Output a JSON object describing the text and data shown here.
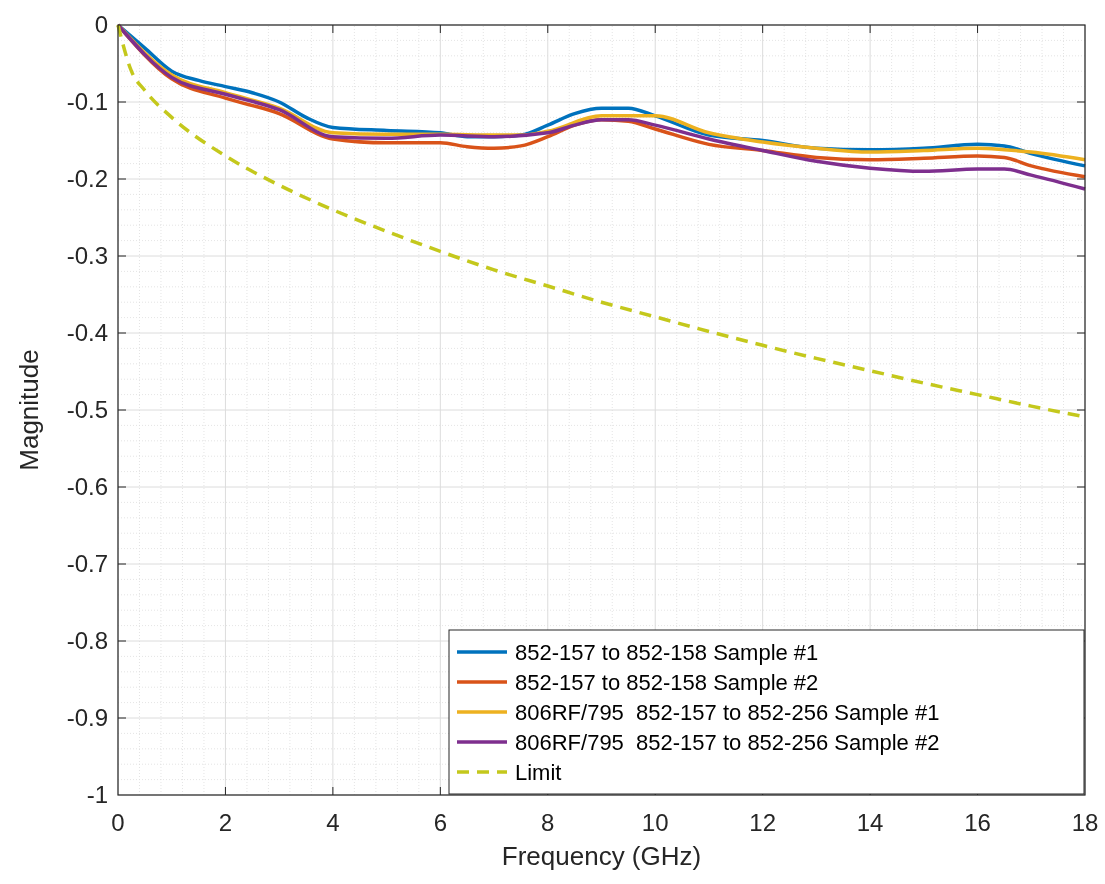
{
  "chart_data": {
    "type": "line",
    "xlabel": "Frequency (GHz)",
    "ylabel": "Magnitude",
    "xlim": [
      0,
      18
    ],
    "xticks": [
      0,
      2,
      4,
      6,
      8,
      10,
      12,
      14,
      16,
      18
    ],
    "ylim": [
      -1,
      0
    ],
    "yticks": [
      -1,
      -0.9,
      -0.8,
      -0.7,
      -0.6,
      -0.5,
      -0.4,
      -0.3,
      -0.2,
      -0.1,
      0
    ],
    "grid": true,
    "legend": "bottom right",
    "line_style": "solid",
    "marker": "none",
    "series": [
      {
        "name": "852-157 to 852-158 Sample #1",
        "color": "#0072bd",
        "x": [
          0,
          0.5,
          1,
          1.5,
          2,
          2.5,
          3,
          3.5,
          4,
          5,
          6,
          6.5,
          7,
          7.5,
          8,
          8.5,
          9,
          9.5,
          10,
          11,
          12,
          13,
          14,
          15,
          16,
          16.5,
          17,
          18
        ],
        "values": [
          0,
          -0.03,
          -0.06,
          -0.072,
          -0.08,
          -0.088,
          -0.1,
          -0.12,
          -0.133,
          -0.137,
          -0.14,
          -0.145,
          -0.145,
          -0.143,
          -0.13,
          -0.115,
          -0.108,
          -0.108,
          -0.118,
          -0.143,
          -0.15,
          -0.16,
          -0.162,
          -0.16,
          -0.155,
          -0.157,
          -0.167,
          -0.183
        ]
      },
      {
        "name": "852-157 to 852-158 Sample #2",
        "color": "#d95319",
        "x": [
          0,
          1,
          2,
          3,
          4,
          5,
          6,
          6.5,
          7,
          7.5,
          8,
          8.5,
          9,
          9.5,
          10,
          11,
          12,
          13,
          14,
          15,
          16,
          16.5,
          17,
          18
        ],
        "values": [
          0,
          -0.07,
          -0.095,
          -0.115,
          -0.148,
          -0.153,
          -0.153,
          -0.158,
          -0.16,
          -0.157,
          -0.145,
          -0.13,
          -0.123,
          -0.125,
          -0.135,
          -0.155,
          -0.163,
          -0.172,
          -0.175,
          -0.173,
          -0.17,
          -0.172,
          -0.183,
          -0.197
        ]
      },
      {
        "name": "806RF/795  852-157 to 852-256 Sample #1",
        "color": "#edb120",
        "x": [
          0,
          1,
          2,
          3,
          4,
          5,
          6,
          7,
          7.5,
          8,
          9,
          10,
          11,
          12,
          13,
          14,
          15,
          16,
          16.5,
          17,
          18
        ],
        "values": [
          0,
          -0.065,
          -0.088,
          -0.108,
          -0.14,
          -0.142,
          -0.142,
          -0.143,
          -0.143,
          -0.138,
          -0.118,
          -0.118,
          -0.14,
          -0.152,
          -0.16,
          -0.165,
          -0.163,
          -0.16,
          -0.162,
          -0.165,
          -0.175
        ]
      },
      {
        "name": "806RF/795  852-157 to 852-256 Sample #2",
        "color": "#7e2f8e",
        "x": [
          0,
          1,
          2,
          3,
          4,
          5,
          6,
          7,
          8,
          8.5,
          9,
          9.5,
          10,
          11,
          12,
          13,
          14,
          15,
          16,
          16.5,
          17,
          18
        ],
        "values": [
          0,
          -0.068,
          -0.09,
          -0.11,
          -0.145,
          -0.147,
          -0.143,
          -0.145,
          -0.14,
          -0.13,
          -0.123,
          -0.123,
          -0.13,
          -0.148,
          -0.163,
          -0.177,
          -0.186,
          -0.19,
          -0.187,
          -0.187,
          -0.195,
          -0.213
        ]
      },
      {
        "name": "Limit",
        "color": "#c4c81c",
        "line_style": "dashed",
        "x": [
          0,
          0.25,
          0.5,
          1,
          2,
          3,
          4,
          5,
          6,
          7,
          8,
          9,
          10,
          11,
          12,
          13,
          14,
          15,
          16,
          17,
          18
        ],
        "values": [
          0,
          -0.06,
          -0.085,
          -0.12,
          -0.17,
          -0.208,
          -0.24,
          -0.268,
          -0.294,
          -0.318,
          -0.339,
          -0.36,
          -0.379,
          -0.398,
          -0.416,
          -0.433,
          -0.449,
          -0.465,
          -0.48,
          -0.495,
          -0.509
        ]
      }
    ]
  }
}
